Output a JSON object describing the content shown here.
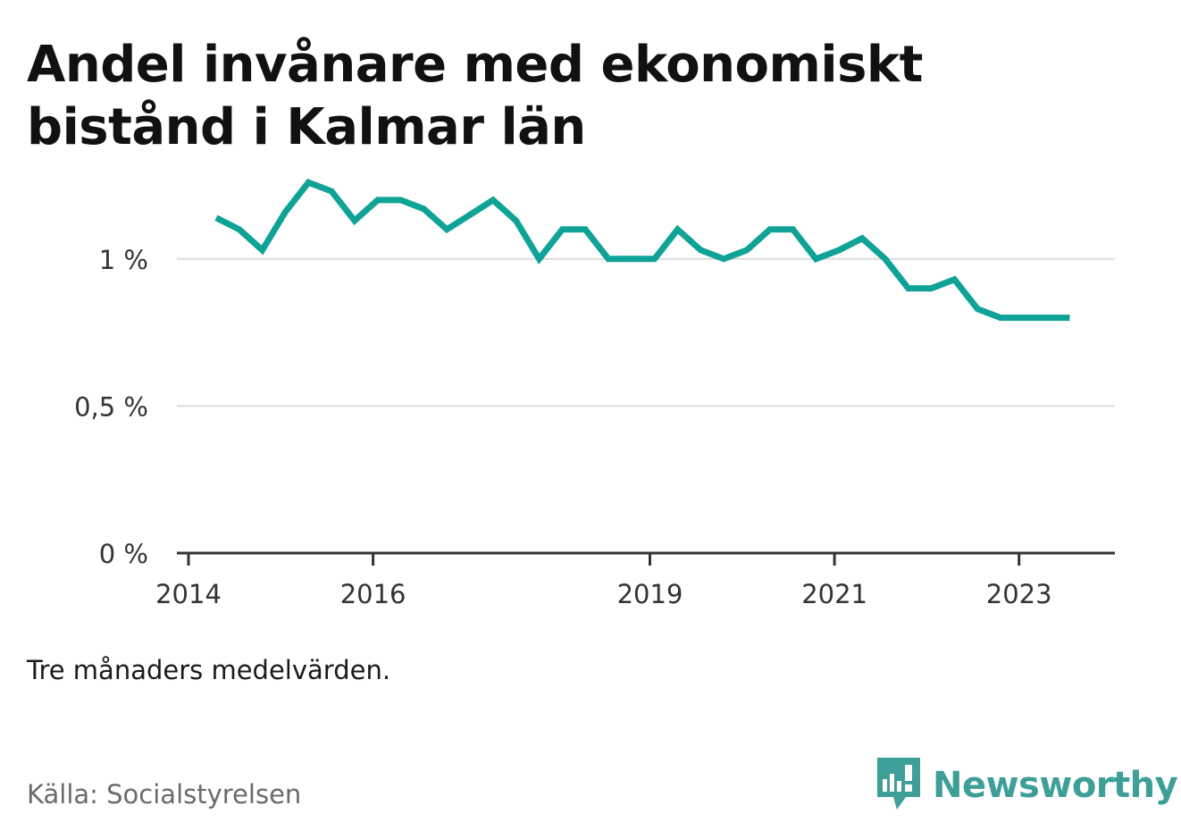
{
  "title": "Andel invånare med ekonomiskt bistånd i Kalmar län",
  "note": "Tre månaders medelvärden.",
  "source": "Källa: Socialstyrelsen",
  "brand": {
    "name": "Newsworthy",
    "icon": "newsworthy-logo-icon",
    "color": "#3d9f98"
  },
  "colors": {
    "line": "#0fa397",
    "grid": "#dcdcdc",
    "axis": "#333333",
    "text": "#333333"
  },
  "chart_data": {
    "type": "line",
    "title": "Andel invånare med ekonomiskt bistånd i Kalmar län",
    "xlabel": "",
    "ylabel": "",
    "xlim": [
      2014.0,
      2024.2
    ],
    "ylim": [
      0,
      1.3
    ],
    "y_ticks": [
      {
        "value": 0,
        "label": "0 %"
      },
      {
        "value": 0.5,
        "label": "0,5 %"
      },
      {
        "value": 1,
        "label": "1 %"
      }
    ],
    "x_ticks": [
      {
        "value": 2014,
        "label": "2014"
      },
      {
        "value": 2016,
        "label": "2016"
      },
      {
        "value": 2019,
        "label": "2019"
      },
      {
        "value": 2021,
        "label": "2021"
      },
      {
        "value": 2023,
        "label": "2023"
      }
    ],
    "grid": true,
    "legend": "none",
    "series": [
      {
        "values": [
          {
            "x": 2014.3,
            "y": 1.14
          },
          {
            "x": 2014.55,
            "y": 1.1
          },
          {
            "x": 2014.8,
            "y": 1.03
          },
          {
            "x": 2015.05,
            "y": 1.16
          },
          {
            "x": 2015.3,
            "y": 1.26
          },
          {
            "x": 2015.55,
            "y": 1.23
          },
          {
            "x": 2015.8,
            "y": 1.13
          },
          {
            "x": 2016.05,
            "y": 1.2
          },
          {
            "x": 2016.3,
            "y": 1.2
          },
          {
            "x": 2016.55,
            "y": 1.17
          },
          {
            "x": 2016.8,
            "y": 1.1
          },
          {
            "x": 2017.05,
            "y": 1.15
          },
          {
            "x": 2017.3,
            "y": 1.2
          },
          {
            "x": 2017.55,
            "y": 1.13
          },
          {
            "x": 2017.8,
            "y": 1.0
          },
          {
            "x": 2018.05,
            "y": 1.1
          },
          {
            "x": 2018.3,
            "y": 1.1
          },
          {
            "x": 2018.55,
            "y": 1.0
          },
          {
            "x": 2018.8,
            "y": 1.0
          },
          {
            "x": 2019.05,
            "y": 1.0
          },
          {
            "x": 2019.3,
            "y": 1.1
          },
          {
            "x": 2019.55,
            "y": 1.03
          },
          {
            "x": 2019.8,
            "y": 1.0
          },
          {
            "x": 2020.05,
            "y": 1.03
          },
          {
            "x": 2020.3,
            "y": 1.1
          },
          {
            "x": 2020.55,
            "y": 1.1
          },
          {
            "x": 2020.8,
            "y": 1.0
          },
          {
            "x": 2021.05,
            "y": 1.03
          },
          {
            "x": 2021.3,
            "y": 1.07
          },
          {
            "x": 2021.55,
            "y": 1.0
          },
          {
            "x": 2021.8,
            "y": 0.9
          },
          {
            "x": 2022.05,
            "y": 0.9
          },
          {
            "x": 2022.3,
            "y": 0.93
          },
          {
            "x": 2022.55,
            "y": 0.83
          },
          {
            "x": 2022.8,
            "y": 0.8
          },
          {
            "x": 2023.05,
            "y": 0.8
          },
          {
            "x": 2023.3,
            "y": 0.8
          },
          {
            "x": 2023.55,
            "y": 0.8
          }
        ]
      }
    ]
  }
}
